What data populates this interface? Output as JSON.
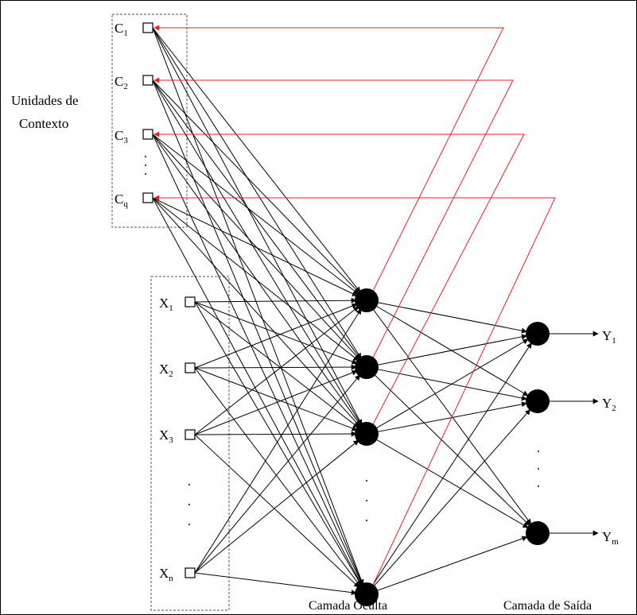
{
  "labels": {
    "context_group": [
      "Unidades de",
      "Contexto"
    ],
    "hidden_layer": "Camada Oculta",
    "output_layer": "Camada de Saída"
  },
  "context_units": [
    {
      "base": "C",
      "sub": "1"
    },
    {
      "base": "C",
      "sub": "2"
    },
    {
      "base": "C",
      "sub": "3"
    },
    {
      "base": "C",
      "sub": "q"
    }
  ],
  "inputs": [
    {
      "base": "X",
      "sub": "1"
    },
    {
      "base": "X",
      "sub": "2"
    },
    {
      "base": "X",
      "sub": "3"
    },
    {
      "base": "X",
      "sub": "n"
    }
  ],
  "outputs": [
    {
      "base": "Y",
      "sub": "1"
    },
    {
      "base": "Y",
      "sub": "2"
    },
    {
      "base": "Y",
      "sub": "m"
    }
  ],
  "colors": {
    "feedback": "#e8202a",
    "connection": "#000000",
    "group_border": "#555555"
  }
}
